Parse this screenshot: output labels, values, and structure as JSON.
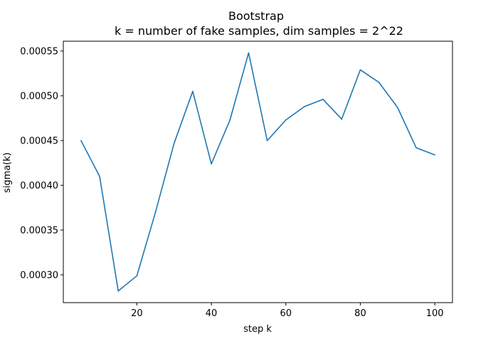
{
  "chart_data": {
    "type": "line",
    "title": "Bootstrap",
    "subtitle": "k = number of fake samples, dim samples = 2^22",
    "xlabel": "step k",
    "ylabel": "sigma(k)",
    "xlim": [
      0.25,
      104.75
    ],
    "ylim": [
      0.000269,
      0.000561
    ],
    "x_ticks": [
      20,
      40,
      60,
      80,
      100
    ],
    "y_ticks": [
      0.0003,
      0.00035,
      0.0004,
      0.00045,
      0.0005,
      0.00055
    ],
    "x_tick_labels": [
      "20",
      "40",
      "60",
      "80",
      "100"
    ],
    "y_tick_labels": [
      "0.00030",
      "0.00035",
      "0.00040",
      "0.00045",
      "0.00050",
      "0.00055"
    ],
    "grid": false,
    "series": [
      {
        "color": "#1f77b4",
        "x": [
          5,
          10,
          15,
          20,
          25,
          30,
          35,
          40,
          45,
          50,
          55,
          60,
          65,
          70,
          75,
          80,
          85,
          90,
          95,
          100
        ],
        "values": [
          0.00045,
          0.00041,
          0.000282,
          0.000299,
          0.00037,
          0.000447,
          0.000505,
          0.000424,
          0.000473,
          0.000548,
          0.00045,
          0.000473,
          0.000488,
          0.000496,
          0.000474,
          0.000529,
          0.000515,
          0.000487,
          0.000442,
          0.000434
        ]
      }
    ]
  }
}
